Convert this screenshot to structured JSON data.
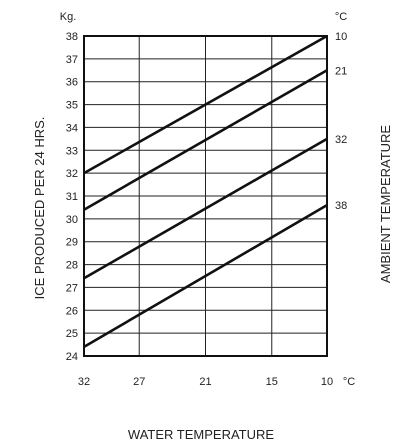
{
  "chart_data": {
    "type": "line",
    "ylabel": "ICE PRODUCED PER 24 HRS.",
    "xlabel": "WATER TEMPERATURE",
    "right_label": "AMBIENT TEMPERATURE",
    "y_unit": "Kg.",
    "x_unit": "°C",
    "right_unit": "°C",
    "xlim": [
      32,
      10
    ],
    "ylim": [
      24,
      38
    ],
    "x_ticks": [
      "32",
      "27",
      "21",
      "15",
      "10"
    ],
    "y_ticks": [
      "24",
      "25",
      "26",
      "27",
      "28",
      "29",
      "30",
      "31",
      "32",
      "33",
      "34",
      "35",
      "36",
      "37",
      "38"
    ],
    "grid": true,
    "series": [
      {
        "name": "10",
        "x": [
          32,
          10
        ],
        "y": [
          32,
          38
        ]
      },
      {
        "name": "21",
        "x": [
          32,
          10
        ],
        "y": [
          30.4,
          36.5
        ]
      },
      {
        "name": "32",
        "x": [
          32,
          10
        ],
        "y": [
          27.4,
          33.5
        ]
      },
      {
        "name": "38",
        "x": [
          32,
          10
        ],
        "y": [
          24.4,
          30.6
        ]
      }
    ]
  }
}
